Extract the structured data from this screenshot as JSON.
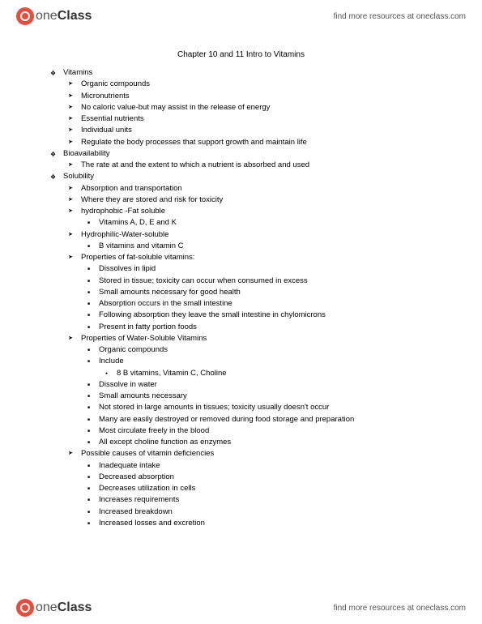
{
  "header": {
    "logo_main": "one",
    "logo_bold": "Class",
    "link_text": "find more resources at oneclass.com"
  },
  "title": "Chapter 10 and 11 Intro to Vitamins",
  "outline": [
    {
      "label": "Vitamins",
      "children": [
        {
          "label": "Organic compounds"
        },
        {
          "label": "Micronutrients"
        },
        {
          "label": "No caloric value-but may assist in the release of energy"
        },
        {
          "label": "Essential nutrients"
        },
        {
          "label": "Individual units"
        },
        {
          "label": "Regulate the body processes that support growth and maintain life"
        }
      ]
    },
    {
      "label": "Bioavailability",
      "children": [
        {
          "label": "The rate at and the extent to which a nutrient is absorbed and used"
        }
      ]
    },
    {
      "label": "Solubility",
      "children": [
        {
          "label": "Absorption and transportation"
        },
        {
          "label": "Where they are stored and risk for toxicity"
        },
        {
          "label": "hydrophobic -Fat soluble",
          "children": [
            {
              "label": "Vitamins A, D, E and K"
            }
          ]
        },
        {
          "label": "Hydrophilic-Water-soluble",
          "children": [
            {
              "label": "B vitamins and vitamin C"
            }
          ]
        },
        {
          "label": "Properties of fat-soluble vitamins:",
          "children": [
            {
              "label": "Dissolves in lipid"
            },
            {
              "label": "Stored in tissue; toxicity can occur when consumed in excess"
            },
            {
              "label": "Small amounts necessary for good health"
            },
            {
              "label": "Absorption occurs in the small intestine"
            },
            {
              "label": "Following absorption they leave the small intestine in chylomicrons"
            },
            {
              "label": "Present in fatty portion foods"
            }
          ]
        },
        {
          "label": "Properties of Water-Soluble Vitamins",
          "children": [
            {
              "label": "Organic compounds"
            },
            {
              "label": "Include",
              "children": [
                {
                  "label": "8 B vitamins, Vitamin C, Choline"
                }
              ]
            },
            {
              "label": "Dissolve in water"
            },
            {
              "label": "Small amounts necessary"
            },
            {
              "label": "Not stored in large amounts in tissues; toxicity usually doesn't occur"
            },
            {
              "label": "Many are easily destroyed or removed during food storage and preparation"
            },
            {
              "label": "Most circulate freely in the blood"
            },
            {
              "label": "All except choline function as enzymes"
            }
          ]
        },
        {
          "label": "Possible causes of vitamin deficiencies",
          "children": [
            {
              "label": "Inadequate intake"
            },
            {
              "label": "Decreased absorption"
            },
            {
              "label": "Decreases utilization in cells"
            },
            {
              "label": "Increases requirements"
            },
            {
              "label": "Increased breakdown"
            },
            {
              "label": "Increased losses and excretion"
            }
          ]
        }
      ]
    }
  ]
}
